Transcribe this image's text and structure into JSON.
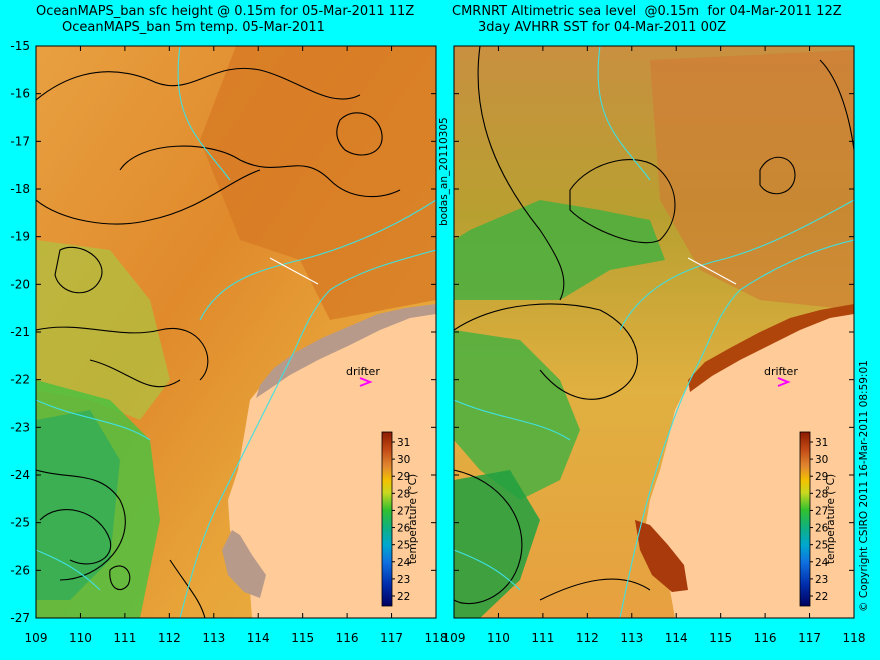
{
  "titles": {
    "left_line1": "OceanMAPS_ban sfc height @ 0.15m for 05-Mar-2011 11Z",
    "left_line2": "OceanMAPS_ban 5m temp. 05-Mar-2011",
    "right_line1": "CMRNRT Altimetric sea level  @0.15m  for 04-Mar-2011 12Z",
    "right_line2": "3day AVHRR SST for 04-Mar-2011 00Z"
  },
  "lat_ticks": [
    "-15",
    "-16",
    "-17",
    "-18",
    "-19",
    "-20",
    "-21",
    "-22",
    "-23",
    "-24",
    "-25",
    "-26",
    "-27"
  ],
  "lon_ticks": [
    "109",
    "110",
    "111",
    "112",
    "113",
    "114",
    "115",
    "116",
    "117",
    "118"
  ],
  "colorbar": {
    "label": "temperature (°C)",
    "ticks": [
      "31",
      "30",
      "29",
      "28",
      "27",
      "26",
      "25",
      "24",
      "23",
      "22"
    ],
    "colors": [
      "#8b1a00",
      "#b83c12",
      "#d2691e",
      "#e8a040",
      "#f2c200",
      "#d8d820",
      "#7fd040",
      "#20c030",
      "#10b070",
      "#00a8c0",
      "#1070e0",
      "#1040d0",
      "#0020a0",
      "#000070"
    ]
  },
  "labels": {
    "drifter": "drifter",
    "run_id": "bodas_an_20110305",
    "copyright": "© Copyright CSIRO 2011   16-Mar-2011 08:59:01"
  },
  "colors": {
    "background": "#00ffff",
    "land": "#ffcc99",
    "drifter_marker": "#ff00ff"
  }
}
